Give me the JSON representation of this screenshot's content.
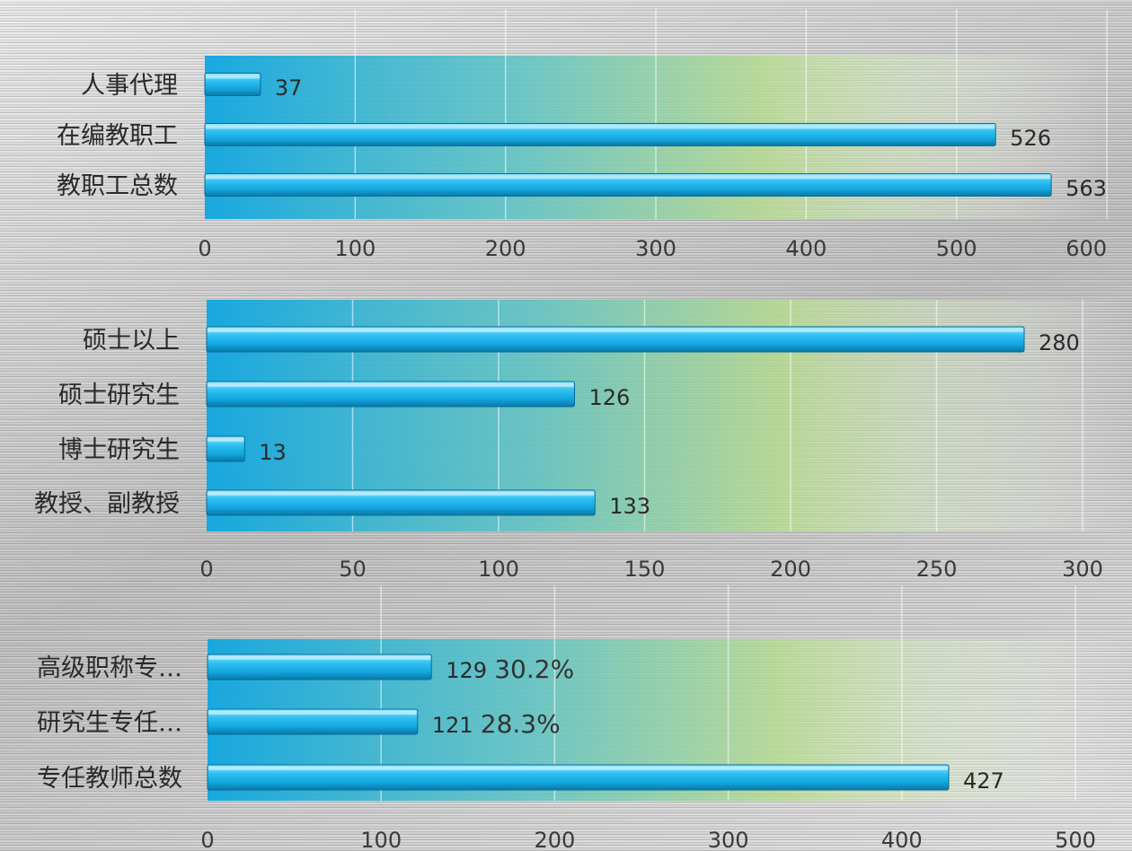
{
  "chart_data": [
    {
      "type": "bar",
      "orientation": "horizontal",
      "categories": [
        "人事代理",
        "在编教职工",
        "教职工总数"
      ],
      "values": [
        37,
        526,
        563
      ],
      "data_labels": [
        "37",
        "526",
        "563"
      ],
      "xlim": [
        0,
        600
      ],
      "xticks": [
        "0",
        "100",
        "200",
        "300",
        "400",
        "500",
        "600"
      ],
      "grid": true,
      "bar_color": "#1fb3e6"
    },
    {
      "type": "bar",
      "orientation": "horizontal",
      "categories": [
        "硕士以上",
        "硕士研究生",
        "博士研究生",
        "教授、副教授"
      ],
      "values": [
        280,
        126,
        13,
        133
      ],
      "data_labels": [
        "280",
        "126",
        "13",
        "133"
      ],
      "xlim": [
        0,
        300
      ],
      "xticks": [
        "0",
        "50",
        "100",
        "150",
        "200",
        "250",
        "300"
      ],
      "grid": true,
      "bar_color": "#1fb3e6"
    },
    {
      "type": "bar",
      "orientation": "horizontal",
      "categories": [
        "高级职称专…",
        "研究生专任…",
        "专任教师总数"
      ],
      "values": [
        129,
        121,
        427
      ],
      "data_labels": [
        "129",
        "121",
        "427"
      ],
      "annotations": [
        "30.2%",
        "28.3%",
        ""
      ],
      "xlim": [
        0,
        500
      ],
      "xticks": [
        "0",
        "100",
        "200",
        "300",
        "400",
        "500"
      ],
      "grid": true,
      "bar_color": "#1fb3e6"
    }
  ],
  "colors": {
    "bar_top": "#7fdcff",
    "bar_mid": "#14aee6",
    "bar_bottom": "#0a7fb0",
    "plot_gradient": [
      "#0fa6e0",
      "#5cc4c4",
      "#b5dc8c",
      "#ffffff"
    ]
  }
}
